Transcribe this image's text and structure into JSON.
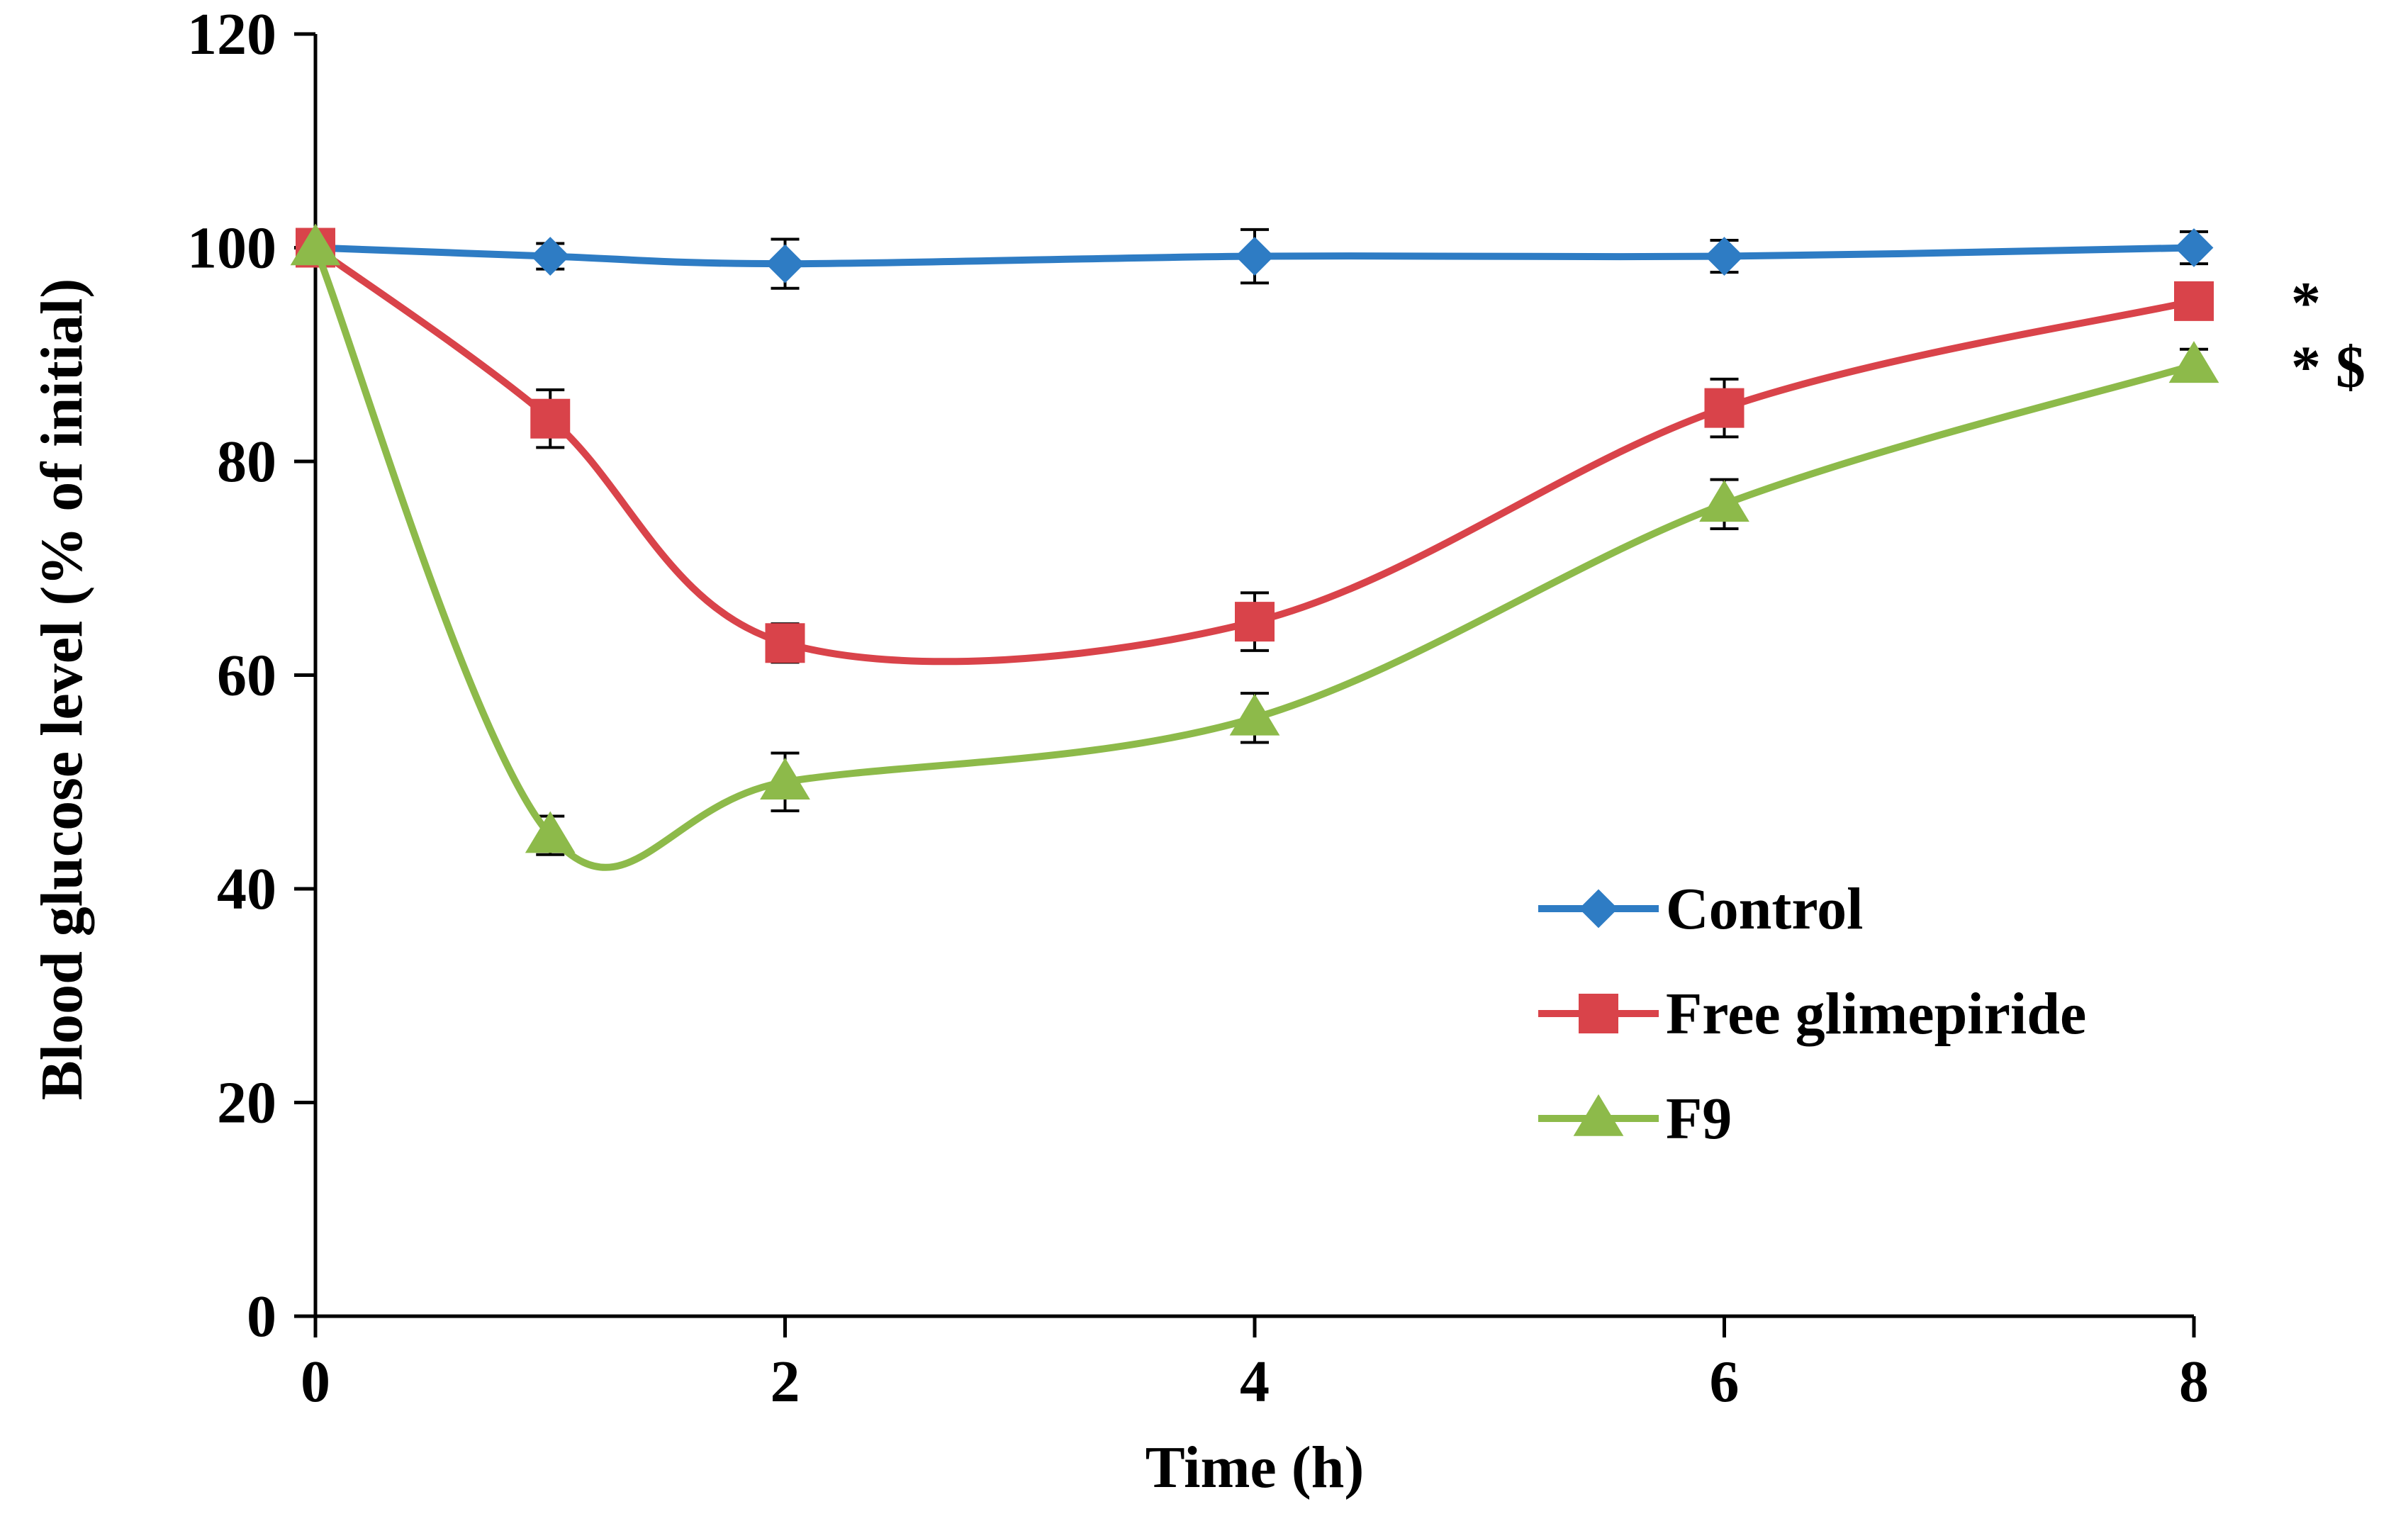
{
  "chart_data": {
    "type": "line",
    "title": "",
    "xlabel": "Time (h)",
    "ylabel": "Blood glucose level (% of initial)",
    "xlim": [
      0,
      8
    ],
    "ylim": [
      0,
      120
    ],
    "x_ticks": [
      0,
      2,
      4,
      6,
      8
    ],
    "y_ticks": [
      0,
      20,
      40,
      60,
      80,
      100,
      120
    ],
    "x_tick_labels": [
      "0",
      "2",
      "4",
      "6",
      "8"
    ],
    "y_tick_labels": [
      "0",
      "20",
      "40",
      "60",
      "80",
      "100",
      "120"
    ],
    "legend_position": "center-right",
    "series": [
      {
        "name": "Control",
        "color": "#2E7CC4",
        "marker": "diamond",
        "x": [
          0,
          1,
          2,
          4,
          6,
          8
        ],
        "values": [
          100,
          99.2,
          98.5,
          99.2,
          99.2,
          100
        ],
        "errors": [
          0,
          1.2,
          2.3,
          2.5,
          1.5,
          1.5
        ],
        "annotation": ""
      },
      {
        "name": "Free glimepiride",
        "color": "#D9434A",
        "marker": "square",
        "x": [
          0,
          1,
          2,
          4,
          6,
          8
        ],
        "values": [
          100,
          84,
          63,
          65,
          85,
          95
        ],
        "errors": [
          0,
          2.7,
          1.8,
          2.7,
          2.7,
          1.5
        ],
        "annotation": "*"
      },
      {
        "name": "F9",
        "color": "#8DBA4A",
        "marker": "triangle",
        "x": [
          0,
          1,
          2,
          4,
          6,
          8
        ],
        "values": [
          100,
          45,
          50,
          56,
          76,
          89
        ],
        "errors": [
          0,
          1.8,
          2.7,
          2.3,
          2.3,
          1.5
        ],
        "annotation": "* $"
      }
    ]
  }
}
